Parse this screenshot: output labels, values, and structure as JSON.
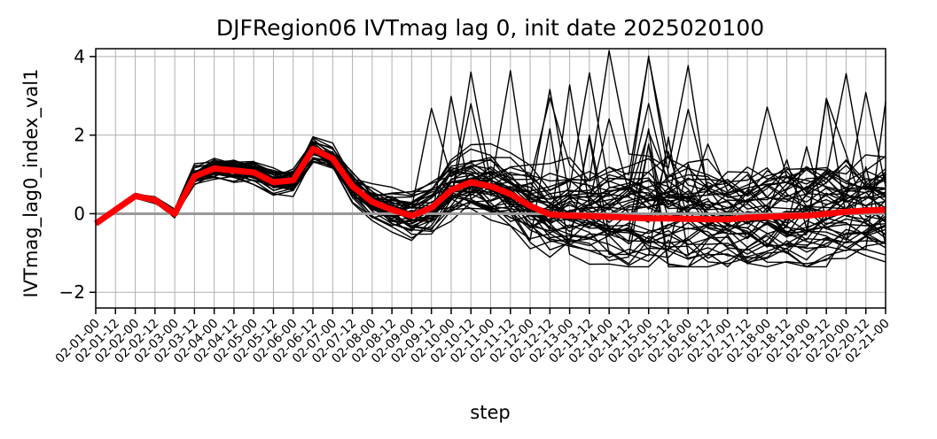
{
  "chart_data": {
    "type": "line",
    "title": "DJFRegion06 IVTmag lag 0, init date 2025020100",
    "xlabel": "step",
    "ylabel": "IVTmag_lag0_index_val1",
    "ylim": [
      -2.4,
      4.2
    ],
    "yticks": [
      -2,
      0,
      2,
      4
    ],
    "ytick_labels": [
      "−2",
      "0",
      "2",
      "4"
    ],
    "grid": true,
    "categories": [
      "02-01-00",
      "02-01-12",
      "02-02-00",
      "02-02-12",
      "02-03-00",
      "02-03-12",
      "02-04-00",
      "02-04-12",
      "02-05-00",
      "02-05-12",
      "02-06-00",
      "02-06-12",
      "02-07-00",
      "02-07-12",
      "02-08-00",
      "02-08-12",
      "02-09-00",
      "02-09-12",
      "02-10-00",
      "02-10-12",
      "02-11-00",
      "02-11-12",
      "02-12-00",
      "02-12-12",
      "02-13-00",
      "02-13-12",
      "02-14-00",
      "02-14-12",
      "02-15-00",
      "02-15-12",
      "02-16-00",
      "02-16-12",
      "02-17-00",
      "02-17-12",
      "02-18-00",
      "02-18-12",
      "02-19-00",
      "02-19-12",
      "02-20-00",
      "02-20-12",
      "02-21-00"
    ],
    "reference_line": {
      "value": 0,
      "color": "#999999"
    },
    "ensemble": {
      "members": 50,
      "color": "#000000",
      "seed": 20250201
    },
    "series": [
      {
        "role": "ensemble-mean",
        "color": "#ff0000",
        "values": [
          -0.25,
          0.1,
          0.45,
          0.35,
          0.0,
          0.95,
          1.15,
          1.1,
          1.05,
          0.8,
          0.85,
          1.65,
          1.4,
          0.7,
          0.3,
          0.1,
          -0.05,
          0.15,
          0.6,
          0.8,
          0.7,
          0.5,
          0.2,
          -0.02,
          -0.05,
          -0.06,
          -0.08,
          -0.1,
          -0.12,
          -0.12,
          -0.13,
          -0.14,
          -0.14,
          -0.1,
          -0.08,
          -0.06,
          -0.05,
          0.0,
          0.05,
          0.08,
          0.1
        ]
      }
    ]
  }
}
